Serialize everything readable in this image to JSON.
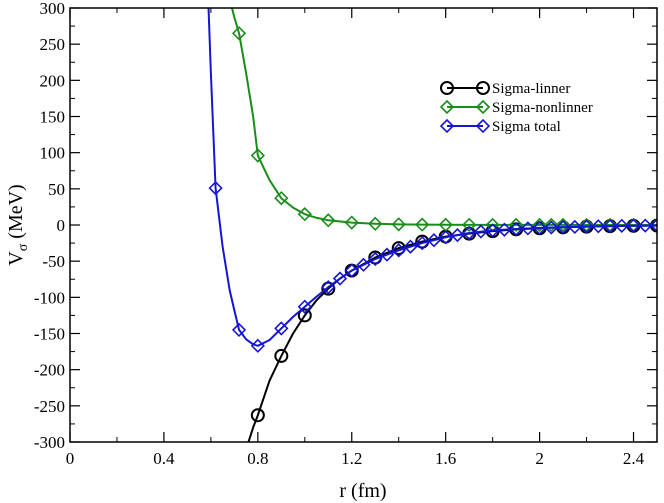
{
  "chart_data": {
    "type": "line",
    "title": "",
    "xlabel": "r (fm)",
    "ylabel_main": "V",
    "ylabel_sub": "σ",
    "ylabel_unit": " (MeV)",
    "xlim": [
      0,
      2.5
    ],
    "ylim": [
      -300,
      300
    ],
    "xticks": [
      0,
      0.4,
      0.8,
      1.2,
      1.6,
      2,
      2.4
    ],
    "xtick_labels": [
      "0",
      "0.4",
      "0.8",
      "1.2",
      "1.6",
      "2",
      "2.4"
    ],
    "yticks": [
      -300,
      -250,
      -200,
      -150,
      -100,
      -50,
      0,
      50,
      100,
      150,
      200,
      250,
      300
    ],
    "ytick_labels": [
      "-300",
      "-250",
      "-200",
      "-150",
      "-100",
      "-50",
      "0",
      "50",
      "100",
      "150",
      "200",
      "250",
      "300"
    ],
    "grid": false,
    "legend_position": "top-right",
    "series": [
      {
        "name": "Sigma-linner",
        "color": "#000000",
        "marker": "circle",
        "line": [
          [
            0.76,
            -300
          ],
          [
            0.78,
            -280
          ],
          [
            0.8,
            -263
          ],
          [
            0.85,
            -215
          ],
          [
            0.9,
            -181
          ],
          [
            0.95,
            -150
          ],
          [
            1.0,
            -125
          ],
          [
            1.05,
            -104
          ],
          [
            1.1,
            -88
          ],
          [
            1.15,
            -74
          ],
          [
            1.2,
            -63
          ],
          [
            1.3,
            -45
          ],
          [
            1.4,
            -32
          ],
          [
            1.5,
            -23
          ],
          [
            1.6,
            -16
          ],
          [
            1.7,
            -12
          ],
          [
            1.8,
            -8.5
          ],
          [
            1.9,
            -6
          ],
          [
            2.0,
            -4.5
          ],
          [
            2.1,
            -3.2
          ],
          [
            2.2,
            -2.3
          ],
          [
            2.3,
            -1.6
          ],
          [
            2.4,
            -1.1
          ],
          [
            2.5,
            -0.8
          ]
        ],
        "markers": [
          [
            0.8,
            -263
          ],
          [
            0.9,
            -181
          ],
          [
            1.0,
            -125
          ],
          [
            1.1,
            -88
          ],
          [
            1.2,
            -63
          ],
          [
            1.3,
            -45
          ],
          [
            1.4,
            -32
          ],
          [
            1.5,
            -23
          ],
          [
            1.6,
            -16
          ],
          [
            1.7,
            -12
          ],
          [
            1.8,
            -8.5
          ],
          [
            1.9,
            -6
          ],
          [
            2.0,
            -4.5
          ],
          [
            2.1,
            -3.2
          ],
          [
            2.2,
            -2.3
          ],
          [
            2.3,
            -1.6
          ],
          [
            2.4,
            -1.1
          ],
          [
            2.5,
            -0.8
          ]
        ]
      },
      {
        "name": "Sigma-nonlinner",
        "color": "#1a8c1a",
        "marker": "diamond",
        "line": [
          [
            0.69,
            300
          ],
          [
            0.7,
            287
          ],
          [
            0.72,
            265
          ],
          [
            0.75,
            210
          ],
          [
            0.78,
            150
          ],
          [
            0.8,
            96
          ],
          [
            0.85,
            62
          ],
          [
            0.9,
            37
          ],
          [
            0.95,
            24
          ],
          [
            1.0,
            15
          ],
          [
            1.05,
            10
          ],
          [
            1.1,
            6.5
          ],
          [
            1.2,
            3.3
          ],
          [
            1.3,
            1.7
          ],
          [
            1.4,
            0.9
          ],
          [
            1.5,
            0.5
          ],
          [
            1.6,
            0.3
          ],
          [
            1.7,
            0.2
          ],
          [
            1.8,
            0.1
          ],
          [
            1.9,
            0.1
          ],
          [
            2.0,
            0.1
          ],
          [
            2.5,
            0.0
          ]
        ],
        "markers": [
          [
            0.72,
            265
          ],
          [
            0.8,
            96
          ],
          [
            0.9,
            37
          ],
          [
            1.0,
            15
          ],
          [
            1.1,
            6.5
          ],
          [
            1.2,
            3.3
          ],
          [
            1.3,
            1.7
          ],
          [
            1.4,
            0.9
          ],
          [
            1.5,
            0.5
          ],
          [
            1.6,
            0.3
          ],
          [
            1.7,
            0.2
          ],
          [
            1.8,
            0.1
          ],
          [
            1.9,
            0.1
          ],
          [
            2.0,
            0.1
          ],
          [
            2.05,
            0.1
          ],
          [
            2.1,
            0.1
          ],
          [
            2.2,
            0.0
          ],
          [
            2.3,
            0.0
          ],
          [
            2.4,
            0.0
          ],
          [
            2.5,
            0.0
          ]
        ]
      },
      {
        "name": "Sigma total",
        "color": "#1515d6",
        "marker": "diamond",
        "line": [
          [
            0.59,
            300
          ],
          [
            0.6,
            210
          ],
          [
            0.62,
            51
          ],
          [
            0.65,
            -30
          ],
          [
            0.68,
            -90
          ],
          [
            0.7,
            -118
          ],
          [
            0.72,
            -145
          ],
          [
            0.75,
            -158
          ],
          [
            0.78,
            -165
          ],
          [
            0.8,
            -167
          ],
          [
            0.85,
            -159
          ],
          [
            0.9,
            -143
          ],
          [
            0.95,
            -127
          ],
          [
            1.0,
            -113
          ],
          [
            1.05,
            -99
          ],
          [
            1.1,
            -86
          ],
          [
            1.15,
            -74
          ],
          [
            1.2,
            -63
          ],
          [
            1.3,
            -47
          ],
          [
            1.4,
            -35
          ],
          [
            1.5,
            -25
          ],
          [
            1.6,
            -17
          ],
          [
            1.7,
            -11
          ],
          [
            1.8,
            -7.5
          ],
          [
            1.9,
            -5.5
          ],
          [
            2.0,
            -4
          ],
          [
            2.1,
            -3
          ],
          [
            2.2,
            -2.2
          ],
          [
            2.3,
            -1.5
          ],
          [
            2.4,
            -1
          ],
          [
            2.5,
            -0.7
          ]
        ],
        "markers": [
          [
            0.62,
            51
          ],
          [
            0.72,
            -145
          ],
          [
            0.8,
            -167
          ],
          [
            0.9,
            -143
          ],
          [
            1.0,
            -113
          ],
          [
            1.1,
            -86
          ],
          [
            1.15,
            -74
          ],
          [
            1.2,
            -63
          ],
          [
            1.25,
            -55
          ],
          [
            1.3,
            -47
          ],
          [
            1.35,
            -41
          ],
          [
            1.4,
            -35
          ],
          [
            1.45,
            -30
          ],
          [
            1.5,
            -25
          ],
          [
            1.55,
            -21
          ],
          [
            1.6,
            -17
          ],
          [
            1.65,
            -14
          ],
          [
            1.7,
            -11
          ],
          [
            1.75,
            -9
          ],
          [
            1.8,
            -7.5
          ],
          [
            1.85,
            -6.5
          ],
          [
            1.9,
            -5.5
          ],
          [
            1.95,
            -4.7
          ],
          [
            2.0,
            -4
          ],
          [
            2.05,
            -3.5
          ],
          [
            2.1,
            -3
          ],
          [
            2.15,
            -2.6
          ],
          [
            2.2,
            -2.2
          ],
          [
            2.25,
            -1.8
          ],
          [
            2.3,
            -1.5
          ],
          [
            2.35,
            -1.2
          ],
          [
            2.4,
            -1
          ],
          [
            2.45,
            -0.8
          ],
          [
            2.5,
            -0.7
          ]
        ]
      }
    ]
  }
}
